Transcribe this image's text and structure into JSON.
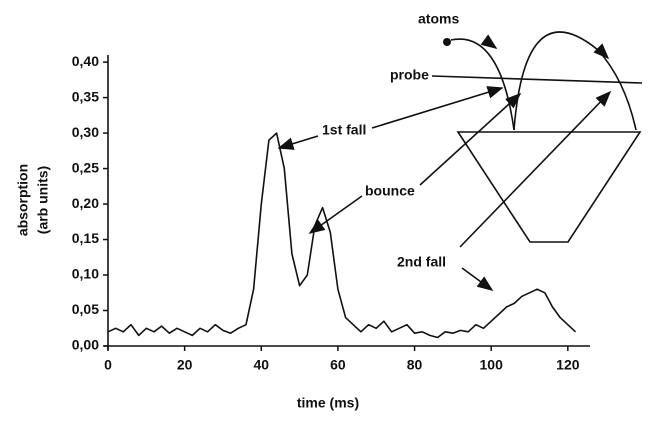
{
  "chart_data": {
    "type": "line",
    "x_label": "time (ms)",
    "y_label": [
      "absorption",
      "(arb units)"
    ],
    "annotations": [
      "1st fall",
      "bounce",
      "2nd fall",
      "atoms",
      "probe"
    ],
    "xlim": [
      0,
      125
    ],
    "ylim": [
      0,
      0.41
    ],
    "xticks": [
      0,
      20,
      40,
      60,
      80,
      100,
      120
    ],
    "yticks": [
      {
        "value": 0,
        "label": "0,00"
      },
      {
        "value": 0.05,
        "label": "0,05"
      },
      {
        "value": 0.1,
        "label": "0,10"
      },
      {
        "value": 0.15,
        "label": "0,15"
      },
      {
        "value": 0.2,
        "label": "0,20"
      },
      {
        "value": 0.25,
        "label": "0,25"
      },
      {
        "value": 0.3,
        "label": "0,30"
      },
      {
        "value": 0.35,
        "label": "0,35"
      },
      {
        "value": 0.4,
        "label": "0,40"
      }
    ],
    "x": [
      0,
      2,
      4,
      6,
      8,
      10,
      12,
      14,
      16,
      18,
      20,
      22,
      24,
      26,
      28,
      30,
      32,
      34,
      36,
      38,
      40,
      42,
      44,
      46,
      48,
      50,
      52,
      54,
      56,
      58,
      60,
      62,
      64,
      66,
      68,
      70,
      72,
      74,
      76,
      78,
      80,
      82,
      84,
      86,
      88,
      90,
      92,
      94,
      96,
      98,
      100,
      102,
      104,
      106,
      108,
      110,
      112,
      114,
      116,
      118,
      120,
      122
    ],
    "series": [
      {
        "color": "#111111",
        "values": [
          0.02,
          0.025,
          0.02,
          0.03,
          0.015,
          0.025,
          0.02,
          0.028,
          0.018,
          0.025,
          0.02,
          0.015,
          0.025,
          0.02,
          0.03,
          0.022,
          0.018,
          0.025,
          0.03,
          0.08,
          0.2,
          0.29,
          0.3,
          0.25,
          0.13,
          0.085,
          0.1,
          0.17,
          0.195,
          0.16,
          0.08,
          0.04,
          0.03,
          0.02,
          0.03,
          0.025,
          0.035,
          0.02,
          0.025,
          0.03,
          0.018,
          0.02,
          0.015,
          0.012,
          0.02,
          0.018,
          0.022,
          0.02,
          0.03,
          0.025,
          0.035,
          0.045,
          0.055,
          0.06,
          0.07,
          0.075,
          0.08,
          0.075,
          0.055,
          0.04,
          0.03,
          0.02
        ]
      }
    ]
  }
}
